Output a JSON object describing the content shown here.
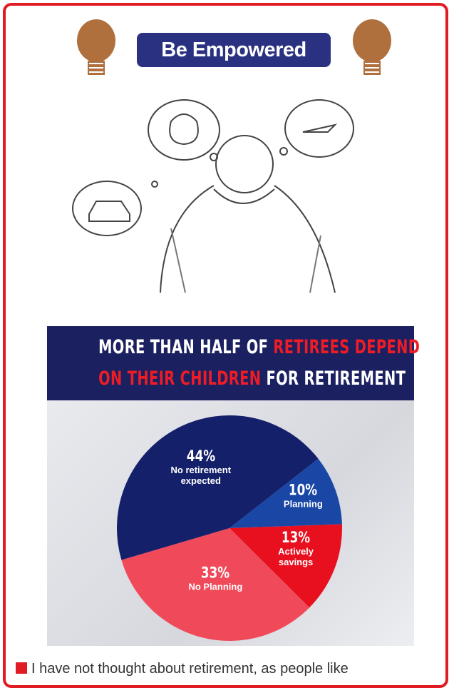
{
  "header": {
    "title": "Be Empowered"
  },
  "chart_data": {
    "type": "pie",
    "title_lines": [
      [
        {
          "text": "MORE THAN HALF OF",
          "color": "#ffffff"
        },
        {
          "text": "RETIREES DEPEND",
          "color": "#ee1c25"
        }
      ],
      [
        {
          "text": "ON THEIR CHILDREN",
          "color": "#ee1c25"
        },
        {
          "text": "FOR RETIREMENT",
          "color": "#ffffff"
        }
      ]
    ],
    "categories": [
      "Planning",
      "Actively savings",
      "No Planning",
      "No retirement expected"
    ],
    "values": [
      10,
      13,
      33,
      44
    ],
    "value_labels": [
      "10%",
      "13%",
      "33%",
      "44%"
    ],
    "colors": [
      "#1a47a6",
      "#e8101e",
      "#f04a5a",
      "#15206b"
    ]
  },
  "body": {
    "text": "I have not thought about retirement, as people like"
  }
}
